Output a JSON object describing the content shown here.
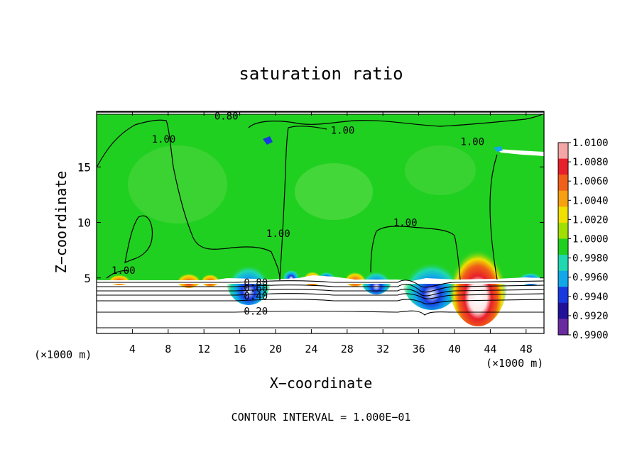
{
  "chart_data": {
    "type": "heatmap",
    "title": "saturation ratio",
    "xlabel": "X−coordinate",
    "ylabel": "Z−coordinate",
    "x_unit_left": "(×1000 m)",
    "x_unit_right": "(×1000 m)",
    "footer": "CONTOUR INTERVAL = 1.000E−01",
    "xlim": [
      0,
      50
    ],
    "ylim": [
      0,
      20
    ],
    "x_ticks": [
      4,
      8,
      12,
      16,
      20,
      24,
      28,
      32,
      36,
      40,
      44,
      48
    ],
    "y_ticks": [
      5,
      10,
      15
    ],
    "colorbar": {
      "levels": [
        "1.0100",
        "1.0080",
        "1.0060",
        "1.0040",
        "1.0020",
        "1.0000",
        "0.9980",
        "0.9960",
        "0.9940",
        "0.9920",
        "0.9900"
      ],
      "colors": [
        "#f4a6a6",
        "#e8202a",
        "#f06018",
        "#f8a010",
        "#f0e000",
        "#a0e000",
        "#20d020",
        "#20d8b0",
        "#10a8e8",
        "#1838e0",
        "#20109a",
        "#6a2aa0"
      ]
    },
    "contour_labels": [
      {
        "text": "0.80",
        "x": 14.5,
        "y": 19.6
      },
      {
        "text": "1.00",
        "x": 7.5,
        "y": 17.5
      },
      {
        "text": "1.00",
        "x": 27.5,
        "y": 18.3
      },
      {
        "text": "1.00",
        "x": 42.0,
        "y": 17.3
      },
      {
        "text": "1.00",
        "x": 20.3,
        "y": 9.0
      },
      {
        "text": "1.00",
        "x": 34.5,
        "y": 10.0
      },
      {
        "text": "1.00",
        "x": 3.0,
        "y": 5.7
      },
      {
        "text": "0.80",
        "x": 17.8,
        "y": 4.6
      },
      {
        "text": "0.60",
        "x": 17.8,
        "y": 4.1
      },
      {
        "text": "0.40",
        "x": 17.8,
        "y": 3.4
      },
      {
        "text": "0.20",
        "x": 17.8,
        "y": 2.0
      }
    ],
    "features": [
      {
        "x": 42.5,
        "y": 5.8,
        "value": 1.01,
        "desc": "supersaturated peak"
      },
      {
        "x": 37.5,
        "y": 5.5,
        "value": 0.992,
        "desc": "subsaturated dip"
      },
      {
        "x": 17.0,
        "y": 5.3,
        "value": 0.992,
        "desc": "subsaturated dip"
      }
    ]
  }
}
